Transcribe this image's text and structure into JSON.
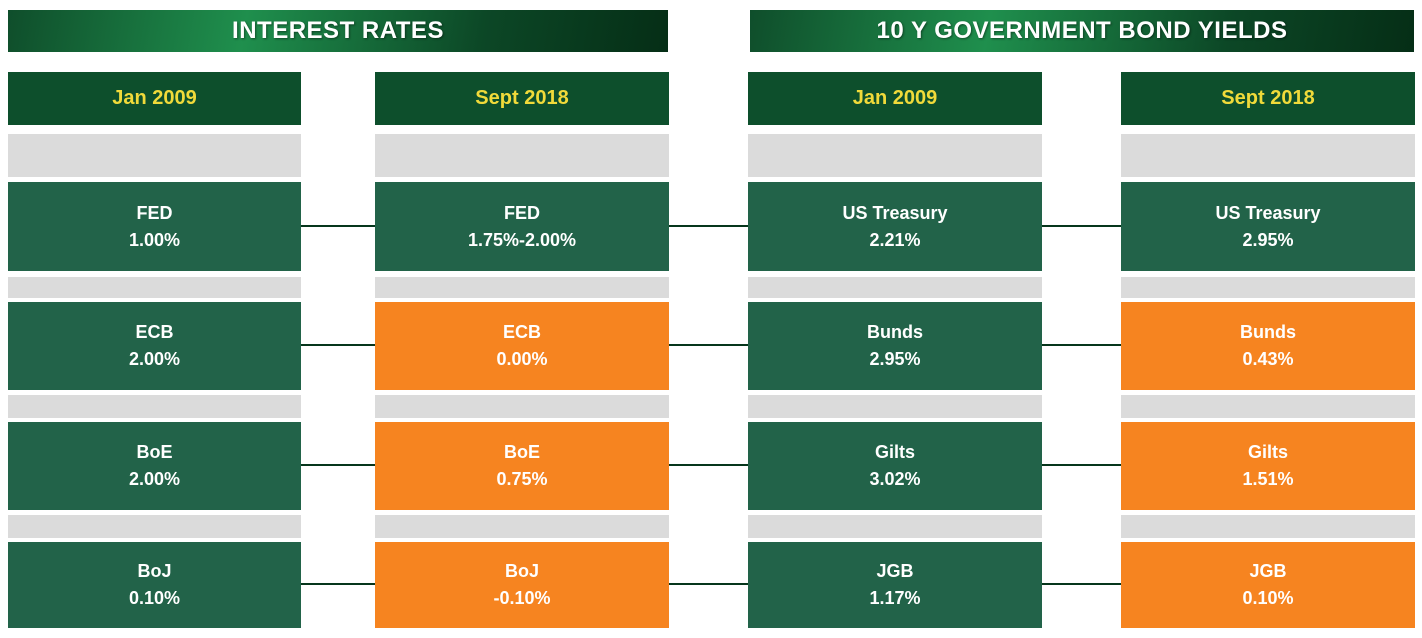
{
  "colors": {
    "green": "#226349",
    "orange": "#f68420",
    "gray": "#dbdbdb",
    "header_green": "#0d4f2c",
    "header_text_yellow": "#f0da3a",
    "cell_text_white": "#ffffff",
    "title_gradient_start": "#0f4e2b",
    "title_gradient_bright": "#1f8f4d",
    "title_gradient_end": "#052e16",
    "connector_line": "#06361c",
    "background": "#ffffff"
  },
  "sections": [
    {
      "title": "INTEREST RATES",
      "columns": [
        {
          "header": "Jan 2009",
          "cells": [
            {
              "label": "FED",
              "value": "1.00%",
              "color": "green"
            },
            {
              "label": "ECB",
              "value": "2.00%",
              "color": "green"
            },
            {
              "label": "BoE",
              "value": "2.00%",
              "color": "green"
            },
            {
              "label": "BoJ",
              "value": "0.10%",
              "color": "green"
            }
          ]
        },
        {
          "header": "Sept 2018",
          "cells": [
            {
              "label": "FED",
              "value": "1.75%-2.00%",
              "color": "green"
            },
            {
              "label": "ECB",
              "value": "0.00%",
              "color": "orange"
            },
            {
              "label": "BoE",
              "value": "0.75%",
              "color": "orange"
            },
            {
              "label": "BoJ",
              "value": "-0.10%",
              "color": "orange"
            }
          ]
        }
      ]
    },
    {
      "title": "10 Y GOVERNMENT BOND YIELDS",
      "columns": [
        {
          "header": "Jan 2009",
          "cells": [
            {
              "label": "US Treasury",
              "value": "2.21%",
              "color": "green"
            },
            {
              "label": "Bunds",
              "value": "2.95%",
              "color": "green"
            },
            {
              "label": "Gilts",
              "value": "3.02%",
              "color": "green"
            },
            {
              "label": "JGB",
              "value": "1.17%",
              "color": "green"
            }
          ]
        },
        {
          "header": "Sept 2018",
          "cells": [
            {
              "label": "US Treasury",
              "value": "2.95%",
              "color": "green"
            },
            {
              "label": "Bunds",
              "value": "0.43%",
              "color": "orange"
            },
            {
              "label": "Gilts",
              "value": "1.51%",
              "color": "orange"
            },
            {
              "label": "JGB",
              "value": "0.10%",
              "color": "orange"
            }
          ]
        }
      ]
    }
  ],
  "chart_data": [
    {
      "type": "table",
      "title": "INTEREST RATES",
      "columns": [
        "Jan 2009",
        "Sept 2018"
      ],
      "rows": [
        {
          "entity": "FED",
          "jan_2009": "1.00%",
          "sept_2018": "1.75%-2.00%"
        },
        {
          "entity": "ECB",
          "jan_2009": "2.00%",
          "sept_2018": "0.00%"
        },
        {
          "entity": "BoE",
          "jan_2009": "2.00%",
          "sept_2018": "0.75%"
        },
        {
          "entity": "BoJ",
          "jan_2009": "0.10%",
          "sept_2018": "-0.10%"
        }
      ],
      "legend_hint": "green = Jan 2009 level or unchanged/higher, orange = lowered rate in Sept 2018"
    },
    {
      "type": "table",
      "title": "10 Y GOVERNMENT BOND YIELDS",
      "columns": [
        "Jan 2009",
        "Sept 2018"
      ],
      "rows": [
        {
          "entity": "US Treasury",
          "jan_2009": "2.21%",
          "sept_2018": "2.95%"
        },
        {
          "entity": "Bunds",
          "jan_2009": "2.95%",
          "sept_2018": "0.43%"
        },
        {
          "entity": "Gilts",
          "jan_2009": "3.02%",
          "sept_2018": "1.51%"
        },
        {
          "entity": "JGB",
          "jan_2009": "1.17%",
          "sept_2018": "0.10%"
        }
      ],
      "legend_hint": "green = Jan 2009 level or higher, orange = lower yield in Sept 2018"
    }
  ]
}
